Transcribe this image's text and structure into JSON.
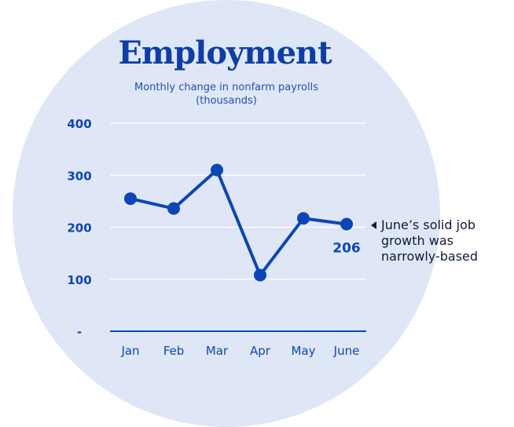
{
  "colors": {
    "background_circle": "#dfe7f6",
    "line": "#0b46b8",
    "axis_text": "#0b46b8",
    "grid": "#ffffff",
    "annotation_text": "#0d1a3a"
  },
  "annotation": {
    "text": "June’s solid job growth was narrowly-based",
    "arrow_icon": "triangle-left-icon"
  },
  "chart_data": {
    "type": "line",
    "title": "Employment",
    "subtitle": "Monthly change in nonfarm payrolls (thousands)",
    "xlabel": "",
    "ylabel": "",
    "categories": [
      "Jan",
      "Feb",
      "Mar",
      "Apr",
      "May",
      "June"
    ],
    "series": [
      {
        "values": [
          255,
          236,
          310,
          108,
          217,
          206
        ]
      }
    ],
    "ylim": [
      0,
      400
    ],
    "yticks": [
      0,
      100,
      200,
      300,
      400
    ],
    "ytick_labels": [
      "-",
      "100",
      "200",
      "300",
      "400"
    ],
    "grid": true,
    "data_labels": [
      {
        "category": "June",
        "text": "206"
      }
    ]
  }
}
